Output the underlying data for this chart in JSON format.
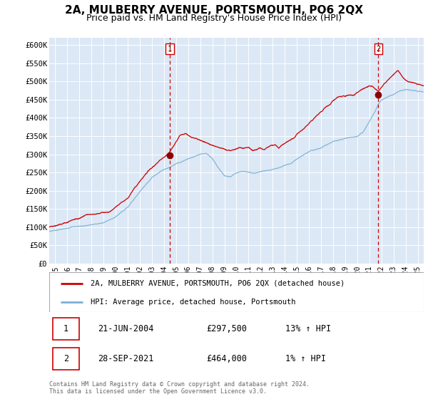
{
  "title": "2A, MULBERRY AVENUE, PORTSMOUTH, PO6 2QX",
  "subtitle": "Price paid vs. HM Land Registry's House Price Index (HPI)",
  "title_fontsize": 11,
  "subtitle_fontsize": 9,
  "background_color": "#ffffff",
  "plot_bg_color": "#dce8f5",
  "grid_color": "#ffffff",
  "ylim": [
    0,
    620000
  ],
  "yticks": [
    0,
    50000,
    100000,
    150000,
    200000,
    250000,
    300000,
    350000,
    400000,
    450000,
    500000,
    550000,
    600000
  ],
  "ytick_labels": [
    "£0",
    "£50K",
    "£100K",
    "£150K",
    "£200K",
    "£250K",
    "£300K",
    "£350K",
    "£400K",
    "£450K",
    "£500K",
    "£550K",
    "£600K"
  ],
  "xlim_start": 1994.5,
  "xlim_end": 2025.5,
  "xtick_years": [
    1995,
    1996,
    1997,
    1998,
    1999,
    2000,
    2001,
    2002,
    2003,
    2004,
    2005,
    2006,
    2007,
    2008,
    2009,
    2010,
    2011,
    2012,
    2013,
    2014,
    2015,
    2016,
    2017,
    2018,
    2019,
    2020,
    2021,
    2022,
    2023,
    2024,
    2025
  ],
  "legend_entries": [
    "2A, MULBERRY AVENUE, PORTSMOUTH, PO6 2QX (detached house)",
    "HPI: Average price, detached house, Portsmouth"
  ],
  "legend_colors": [
    "#cc0000",
    "#7ab0d4"
  ],
  "sale1_label": "1",
  "sale1_date": "21-JUN-2004",
  "sale1_price": "£297,500",
  "sale1_hpi": "13% ↑ HPI",
  "sale1_x": 2004.47,
  "sale1_y": 297500,
  "sale2_label": "2",
  "sale2_date": "28-SEP-2021",
  "sale2_price": "£464,000",
  "sale2_hpi": "1% ↑ HPI",
  "sale2_x": 2021.75,
  "sale2_y": 464000,
  "vline_color": "#cc0000",
  "marker_color": "#8b0000",
  "footer_text": "Contains HM Land Registry data © Crown copyright and database right 2024.\nThis data is licensed under the Open Government Licence v3.0.",
  "hpi_color": "#7ab0d4",
  "price_color": "#cc0000"
}
